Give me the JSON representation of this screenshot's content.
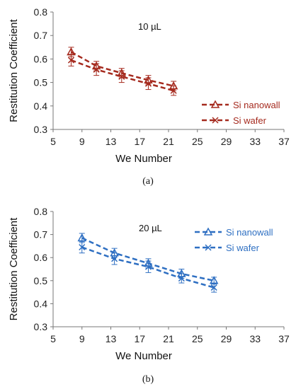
{
  "chart_data": [
    {
      "type": "line",
      "panel_label": "(a)",
      "annotation": "10 µL",
      "xlabel": "We Number",
      "ylabel": "Restitution Coefficient",
      "xlim": [
        5,
        37
      ],
      "ylim": [
        0.3,
        0.8
      ],
      "xticks": [
        "5",
        "9",
        "13",
        "17",
        "21",
        "25",
        "29",
        "33",
        "37"
      ],
      "yticks": [
        "0.3",
        "0.4",
        "0.5",
        "0.6",
        "0.7",
        "0.8"
      ],
      "grid": false,
      "legend_position": "right",
      "series": [
        {
          "name": "Si nanowall",
          "color": "#a52a1e",
          "marker": "triangle",
          "x": [
            7.5,
            11,
            14.5,
            18.2,
            21.7
          ],
          "y": [
            0.63,
            0.57,
            0.54,
            0.51,
            0.485
          ],
          "err": [
            0.02,
            0.02,
            0.02,
            0.02,
            0.02
          ]
        },
        {
          "name": "Si wafer",
          "color": "#a52a1e",
          "marker": "x",
          "x": [
            7.5,
            11,
            14.5,
            18.2,
            21.7
          ],
          "y": [
            0.595,
            0.555,
            0.525,
            0.495,
            0.465
          ],
          "err": [
            0.025,
            0.025,
            0.025,
            0.025,
            0.02
          ]
        }
      ]
    },
    {
      "type": "line",
      "panel_label": "(b)",
      "annotation": "20 µL",
      "xlabel": "We Number",
      "ylabel": "Restitution Coefficient",
      "xlim": [
        5,
        37
      ],
      "ylim": [
        0.3,
        0.8
      ],
      "xticks": [
        "5",
        "9",
        "13",
        "17",
        "21",
        "25",
        "29",
        "33",
        "37"
      ],
      "yticks": [
        "0.3",
        "0.4",
        "0.5",
        "0.6",
        "0.7",
        "0.8"
      ],
      "grid": false,
      "legend_position": "top-right",
      "series": [
        {
          "name": "Si nanowall",
          "color": "#2e6fc2",
          "marker": "triangle",
          "x": [
            9,
            13.5,
            18.2,
            22.8,
            27.3
          ],
          "y": [
            0.685,
            0.62,
            0.575,
            0.53,
            0.5
          ],
          "err": [
            0.02,
            0.02,
            0.02,
            0.02,
            0.015
          ]
        },
        {
          "name": "Si wafer",
          "color": "#2e6fc2",
          "marker": "x",
          "x": [
            9,
            13.5,
            18.2,
            22.8,
            27.3
          ],
          "y": [
            0.645,
            0.595,
            0.56,
            0.51,
            0.47
          ],
          "err": [
            0.025,
            0.025,
            0.025,
            0.02,
            0.02
          ]
        }
      ]
    }
  ]
}
